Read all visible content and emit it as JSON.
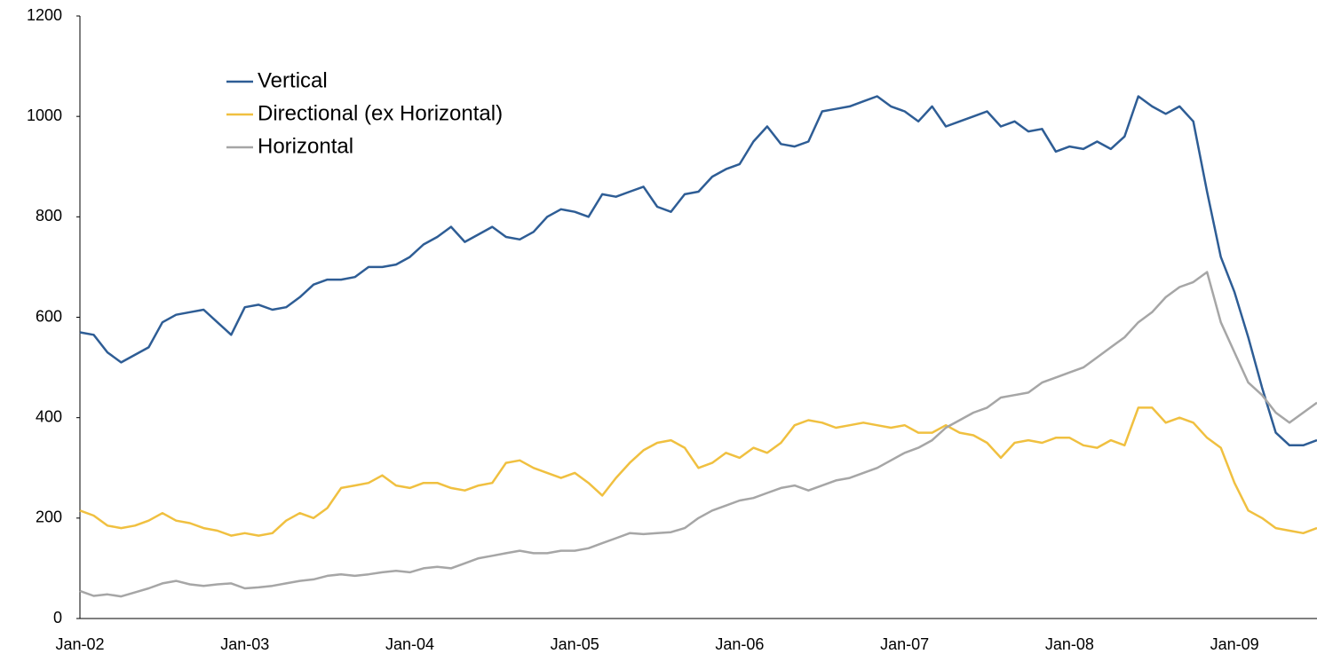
{
  "chart_data": {
    "type": "line",
    "categories": [
      "Jan-02",
      null,
      null,
      null,
      null,
      null,
      null,
      null,
      null,
      null,
      null,
      null,
      "Jan-03",
      null,
      null,
      null,
      null,
      null,
      null,
      null,
      null,
      null,
      null,
      null,
      "Jan-04",
      null,
      null,
      null,
      null,
      null,
      null,
      null,
      null,
      null,
      null,
      null,
      "Jan-05",
      null,
      null,
      null,
      null,
      null,
      null,
      null,
      null,
      null,
      null,
      null,
      "Jan-06",
      null,
      null,
      null,
      null,
      null,
      null,
      null,
      null,
      null,
      null,
      null,
      "Jan-07",
      null,
      null,
      null,
      null,
      null,
      null,
      null,
      null,
      null,
      null,
      null,
      "Jan-08",
      null,
      null,
      null,
      null,
      null,
      null,
      null,
      null,
      null,
      null,
      null,
      "Jan-09",
      null,
      null,
      null,
      null,
      null,
      null
    ],
    "series": [
      {
        "name": "Vertical",
        "color": "#2e5d95",
        "values": [
          570,
          565,
          530,
          510,
          525,
          540,
          590,
          605,
          610,
          615,
          590,
          565,
          620,
          625,
          615,
          620,
          640,
          665,
          675,
          675,
          680,
          700,
          700,
          705,
          720,
          745,
          760,
          780,
          750,
          765,
          780,
          760,
          755,
          770,
          800,
          815,
          810,
          800,
          845,
          840,
          850,
          860,
          820,
          810,
          845,
          850,
          880,
          895,
          905,
          950,
          980,
          945,
          940,
          950,
          1010,
          1015,
          1020,
          1030,
          1040,
          1020,
          1010,
          990,
          1020,
          980,
          990,
          1000,
          1010,
          980,
          990,
          970,
          975,
          930,
          940,
          935,
          950,
          935,
          960,
          1040,
          1020,
          1005,
          1020,
          990,
          850,
          720,
          650,
          560,
          460,
          370,
          345,
          345,
          355
        ]
      },
      {
        "name": "Directional (ex Horizontal)",
        "color": "#f0c040",
        "values": [
          215,
          205,
          185,
          180,
          185,
          195,
          210,
          195,
          190,
          180,
          175,
          165,
          170,
          165,
          170,
          195,
          210,
          200,
          220,
          260,
          265,
          270,
          285,
          265,
          260,
          270,
          270,
          260,
          255,
          265,
          270,
          310,
          315,
          300,
          290,
          280,
          290,
          270,
          245,
          280,
          310,
          335,
          350,
          355,
          340,
          300,
          310,
          330,
          320,
          340,
          330,
          350,
          385,
          395,
          390,
          380,
          385,
          390,
          385,
          380,
          385,
          370,
          370,
          385,
          370,
          365,
          350,
          320,
          350,
          355,
          350,
          360,
          360,
          345,
          340,
          355,
          345,
          420,
          420,
          390,
          400,
          390,
          360,
          340,
          270,
          215,
          200,
          180,
          175,
          170,
          180
        ]
      },
      {
        "name": "Horizontal",
        "color": "#a6a6a6",
        "values": [
          55,
          45,
          48,
          44,
          52,
          60,
          70,
          75,
          68,
          65,
          68,
          70,
          60,
          62,
          65,
          70,
          75,
          78,
          85,
          88,
          85,
          88,
          92,
          95,
          92,
          100,
          103,
          100,
          110,
          120,
          125,
          130,
          135,
          130,
          130,
          135,
          135,
          140,
          150,
          160,
          170,
          168,
          170,
          172,
          180,
          200,
          215,
          225,
          235,
          240,
          250,
          260,
          265,
          255,
          265,
          275,
          280,
          290,
          300,
          315,
          330,
          340,
          355,
          380,
          395,
          410,
          420,
          440,
          445,
          450,
          470,
          480,
          490,
          500,
          520,
          540,
          560,
          590,
          610,
          640,
          660,
          670,
          690,
          590,
          530,
          470,
          445,
          410,
          390,
          410,
          430
        ]
      }
    ],
    "ylim": [
      0,
      1200
    ],
    "yticks": [
      0,
      200,
      400,
      600,
      800,
      1000,
      1200
    ],
    "grid": false
  }
}
